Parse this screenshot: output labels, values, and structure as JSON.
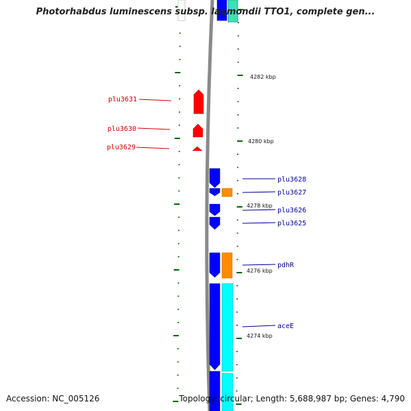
{
  "header": {
    "title": "Photorhabdus luminescens subsp. laumondii TTO1, complete gen..."
  },
  "footer": {
    "accession": "Accession: NC_005126",
    "summary": "Topology: circular; Length: 5,688,987 bp; Genes: 4,790"
  },
  "scale_labels": [
    "4282 kbp",
    "4280 kbp",
    "4278 kbp",
    "4276 kbp",
    "4274 kbp"
  ],
  "genes": {
    "reverse_strand": [
      "plu3631",
      "plu3630",
      "plu3629"
    ],
    "forward_strand": [
      "plu3628",
      "plu3627",
      "plu3626",
      "plu3625",
      "pdhR",
      "aceE"
    ]
  },
  "colors": {
    "reverse_gene": "#ff0000",
    "forward_gene": "#0000ff",
    "orange_feature": "#ff8c00",
    "cyan_feature": "#00ffff",
    "tick": "#006400",
    "backbone": "#8a8a8a",
    "reverse_label": "#cc0000",
    "forward_label": "#000099"
  }
}
